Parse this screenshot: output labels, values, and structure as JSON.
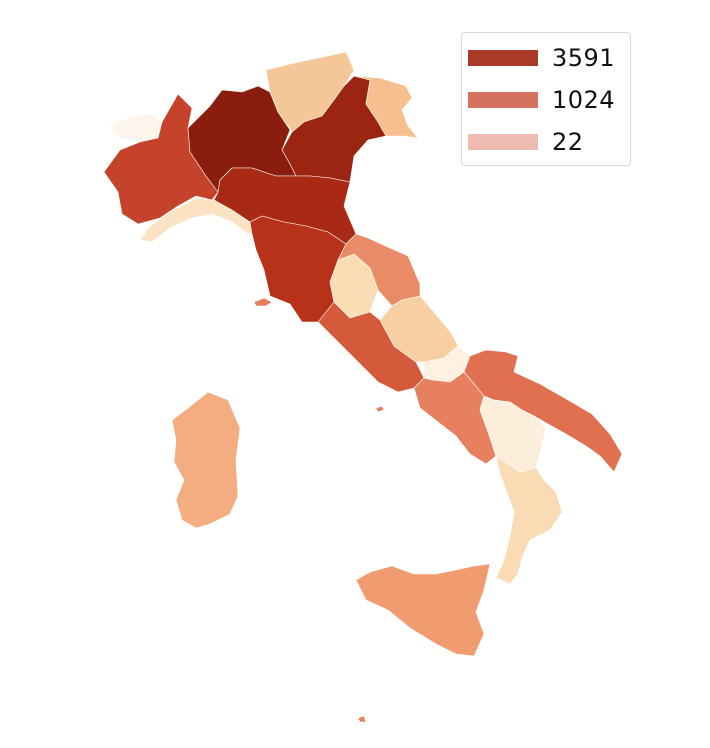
{
  "legend": {
    "entries": [
      {
        "label": "3591",
        "color": "#a83a26"
      },
      {
        "label": "1024",
        "color": "#d5725f"
      },
      {
        "label": "22",
        "color": "#f0bcb2"
      }
    ]
  },
  "regions": [
    {
      "name": "lombardia",
      "color": "#8b1d0e"
    },
    {
      "name": "veneto",
      "color": "#9c2512"
    },
    {
      "name": "emilia-romagna",
      "color": "#a92a14"
    },
    {
      "name": "piemonte",
      "color": "#c5432a"
    },
    {
      "name": "toscana",
      "color": "#b83119"
    },
    {
      "name": "lazio",
      "color": "#d55a3c"
    },
    {
      "name": "puglia",
      "color": "#e0704f"
    },
    {
      "name": "campania",
      "color": "#e6805f"
    },
    {
      "name": "marche",
      "color": "#ea8b68"
    },
    {
      "name": "sicilia",
      "color": "#f09c70"
    },
    {
      "name": "sardegna",
      "color": "#f3ad80"
    },
    {
      "name": "trentino-alto-adige",
      "color": "#f5c698"
    },
    {
      "name": "friuli-venezia-giulia",
      "color": "#f6bf90"
    },
    {
      "name": "abruzzo",
      "color": "#f8cfa3"
    },
    {
      "name": "umbria",
      "color": "#fadcb5"
    },
    {
      "name": "calabria",
      "color": "#f9dcb4"
    },
    {
      "name": "liguria",
      "color": "#fbe3c4"
    },
    {
      "name": "basilicata",
      "color": "#fdeedb"
    },
    {
      "name": "molise",
      "color": "#fef1e2"
    },
    {
      "name": "valle-d-aosta",
      "color": "#fef6ec"
    }
  ]
}
